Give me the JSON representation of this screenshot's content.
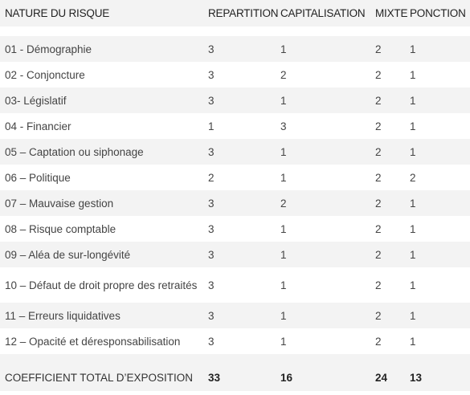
{
  "headers": [
    "NATURE DU RISQUE",
    "REPARTITION",
    "CAPITALISATION",
    "MIXTE",
    "PONCTION"
  ],
  "rows": [
    {
      "risk": "01 - Démographie",
      "repartition": "3",
      "capitalisation": "1",
      "mixte": "2",
      "ponction": "1"
    },
    {
      "risk": "02 - Conjoncture",
      "repartition": "3",
      "capitalisation": "2",
      "mixte": "2",
      "ponction": "1"
    },
    {
      "risk": "03- Législatif",
      "repartition": "3",
      "capitalisation": "1",
      "mixte": "2",
      "ponction": "1"
    },
    {
      "risk": "04 - Financier",
      "repartition": "1",
      "capitalisation": "3",
      "mixte": "2",
      "ponction": "1"
    },
    {
      "risk": "05 – Captation ou siphonage",
      "repartition": "3",
      "capitalisation": "1",
      "mixte": "2",
      "ponction": "1"
    },
    {
      "risk": "06 – Politique",
      "repartition": "2",
      "capitalisation": "1",
      "mixte": "2",
      "ponction": "2"
    },
    {
      "risk": "07 – Mauvaise gestion",
      "repartition": "3",
      "capitalisation": "2",
      "mixte": "2",
      "ponction": "1"
    },
    {
      "risk": "08 – Risque comptable",
      "repartition": "3",
      "capitalisation": "1",
      "mixte": "2",
      "ponction": "1"
    },
    {
      "risk": "09 – Aléa de sur-longévité",
      "repartition": "3",
      "capitalisation": "1",
      "mixte": "2",
      "ponction": "1"
    },
    {
      "risk": "10 – Défaut de droit propre des retraités",
      "repartition": "3",
      "capitalisation": "1",
      "mixte": "2",
      "ponction": "1"
    },
    {
      "risk": "11 – Erreurs liquidatives",
      "repartition": "3",
      "capitalisation": "1",
      "mixte": "2",
      "ponction": "1"
    },
    {
      "risk": "12 – Opacité et déresponsabilisation",
      "repartition": "3",
      "capitalisation": "1",
      "mixte": "2",
      "ponction": "1"
    }
  ],
  "total": {
    "label": "COEFFICIENT TOTAL D’EXPOSITION",
    "repartition": "33",
    "capitalisation": "16",
    "mixte": "24",
    "ponction": "13"
  }
}
